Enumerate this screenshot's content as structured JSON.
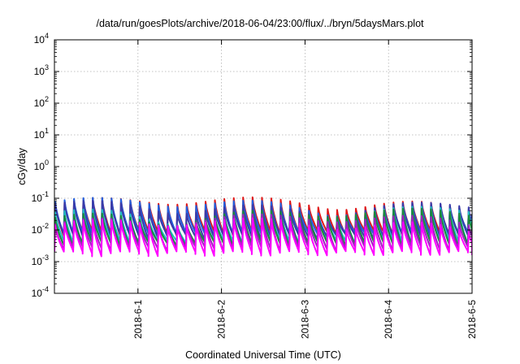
{
  "chart_data": {
    "type": "line",
    "title": "/data/run/goesPlots/archive/2018-06-04/23:00/flux/../bryn/5daysMars.plot",
    "xlabel": "Coordinated Universal Time (UTC)",
    "ylabel": "cGy/day",
    "yscale": "log",
    "ylim": [
      0.0001,
      10000
    ],
    "xlim": [
      "2018-05-31",
      "2018-06-05"
    ],
    "grid": true,
    "y_ticks": [
      {
        "base": "10",
        "exp": "-4"
      },
      {
        "base": "10",
        "exp": "-3"
      },
      {
        "base": "10",
        "exp": "-2"
      },
      {
        "base": "10",
        "exp": "-1"
      },
      {
        "base": "10",
        "exp": "0"
      },
      {
        "base": "10",
        "exp": "1"
      },
      {
        "base": "10",
        "exp": "2"
      },
      {
        "base": "10",
        "exp": "3"
      },
      {
        "base": "10",
        "exp": "4"
      }
    ],
    "x_ticks": [
      "2018-6-1",
      "2018-6-2",
      "2018-6-3",
      "2018-6-4",
      "2018-6-5"
    ],
    "cycle_period_hours": 2.7,
    "series": [
      {
        "color": "#e01818",
        "peak": 0.07,
        "trough": 0.008
      },
      {
        "color": "#2060e0",
        "peak": 0.065,
        "trough": 0.007
      },
      {
        "color": "#3a3aa8",
        "peak": 0.055,
        "trough": 0.006
      },
      {
        "color": "#20c0c0",
        "peak": 0.035,
        "trough": 0.004
      },
      {
        "color": "#1a8a3a",
        "peak": 0.03,
        "trough": 0.0035
      },
      {
        "color": "#a020c0",
        "peak": 0.02,
        "trough": 0.0025
      },
      {
        "color": "#ff00ff",
        "peak": 0.015,
        "trough": 0.0018
      }
    ]
  }
}
